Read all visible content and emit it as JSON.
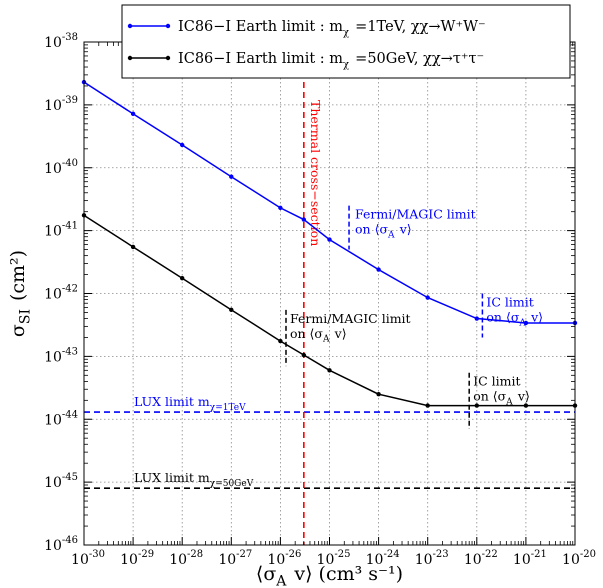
{
  "chart_data": {
    "type": "line",
    "x_scale": "log",
    "y_scale": "log",
    "xlim": [
      1e-30,
      1e-20
    ],
    "ylim": [
      1e-46,
      1e-38
    ],
    "grid": true,
    "legend_position": "top-center",
    "xlabel": "⟨σ_A v⟩ (cm³ s⁻¹)",
    "ylabel": "σ_SI (cm²)",
    "x_ticks": [
      "10^-30",
      "10^-29",
      "10^-28",
      "10^-27",
      "10^-26",
      "10^-25",
      "10^-24",
      "10^-23",
      "10^-22",
      "10^-21",
      "10^-20"
    ],
    "y_ticks": [
      "10^-46",
      "10^-45",
      "10^-44",
      "10^-43",
      "10^-42",
      "10^-41",
      "10^-40",
      "10^-39",
      "10^-38"
    ],
    "series": [
      {
        "name": "IC86−I Earth limit : m_χ =1TeV, χχ→W⁺W⁻",
        "color": "#0000ff",
        "x": [
          1e-30,
          1e-29,
          1e-28,
          1e-27,
          1e-26,
          3e-26,
          1e-25,
          1e-24,
          1e-23,
          1e-22,
          1e-21,
          1e-20
        ],
        "y": [
          2.3e-39,
          7.2e-40,
          2.3e-40,
          7.2e-41,
          2.3e-41,
          1.5e-41,
          7.2e-42,
          2.4e-42,
          8.6e-43,
          4e-43,
          3.4e-43,
          3.4e-43
        ]
      },
      {
        "name": "IC86−I Earth limit : m_χ =50GeV, χχ→τ⁺τ⁻",
        "color": "#000000",
        "x": [
          1e-30,
          1e-29,
          1e-28,
          1e-27,
          1e-26,
          3e-26,
          1e-25,
          1e-24,
          1e-23,
          1e-22,
          1e-21,
          1e-20
        ],
        "y": [
          1.75e-41,
          5.5e-42,
          1.75e-42,
          5.5e-43,
          1.75e-43,
          1.05e-43,
          6e-44,
          2.5e-44,
          1.65e-44,
          1.65e-44,
          1.65e-44,
          1.65e-44
        ]
      }
    ],
    "reference_lines": {
      "lux_1tev": {
        "y": 1.3e-44,
        "color": "#0000ff",
        "label": "LUX limit m_χ=1TeV"
      },
      "lux_50gev": {
        "y": 8e-46,
        "color": "#000000",
        "label": "LUX limit m_χ=50GeV"
      },
      "thermal": {
        "x": 3e-26,
        "color": "#ff0000",
        "label": "Thermal cross−section"
      }
    },
    "annotations": {
      "fermi_blue": {
        "x": 2.5e-25,
        "y_range": [
          5e-42,
          2.5e-41
        ],
        "color": "#0000ff",
        "line1": "Fermi/MAGIC limit",
        "line2": "on ⟨σ_A v⟩"
      },
      "ic_blue": {
        "x": 1.3e-22,
        "y_range": [
          2e-43,
          1e-42
        ],
        "color": "#0000ff",
        "line1": "IC limit",
        "line2": "on ⟨σ_A v⟩"
      },
      "fermi_black": {
        "x": 1.3e-26,
        "y_range": [
          7e-44,
          5.5e-43
        ],
        "color": "#000000",
        "line1": "Fermi/MAGIC limit",
        "line2": "on ⟨σ_A v⟩"
      },
      "ic_black": {
        "x": 7e-23,
        "y_range": [
          7e-45,
          5.5e-44
        ],
        "color": "#000000",
        "line1": "IC limit",
        "line2": "on ⟨σ_A v⟩"
      }
    }
  }
}
